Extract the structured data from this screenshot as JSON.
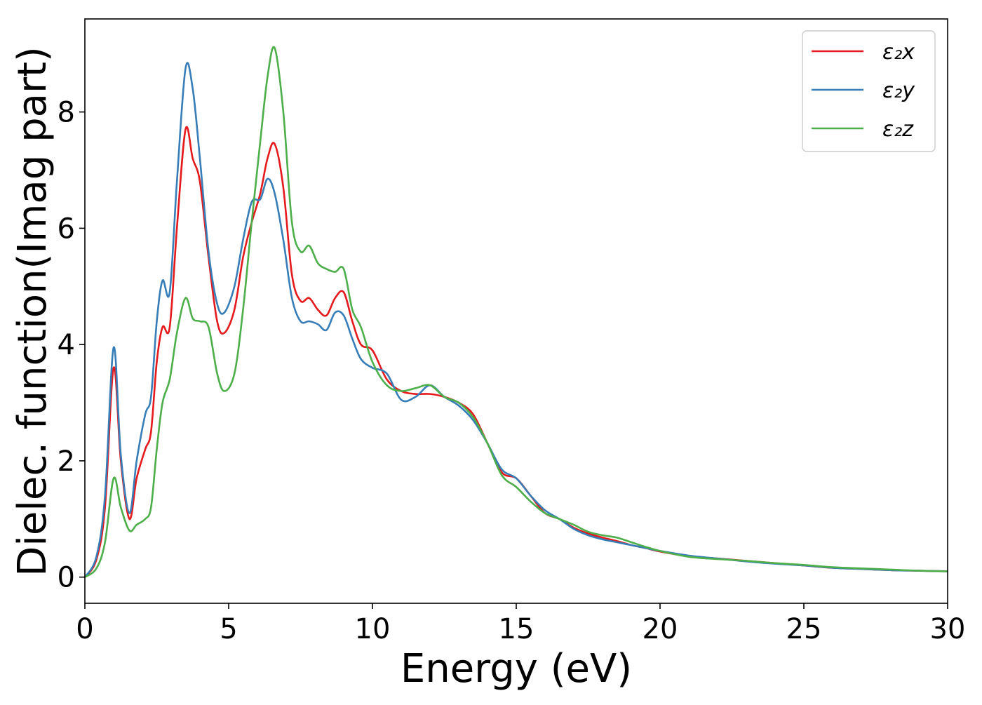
{
  "chart_data": {
    "type": "line",
    "title": "",
    "xlabel": "Energy (eV)",
    "ylabel": "Dielec. function(Imag part)",
    "xlim": [
      0,
      30
    ],
    "ylim": [
      -0.45,
      9.6
    ],
    "xticks": [
      0,
      5,
      10,
      15,
      20,
      25,
      30
    ],
    "yticks": [
      0,
      2,
      4,
      6,
      8
    ],
    "xtick_labels": [
      "0",
      "5",
      "10",
      "15",
      "20",
      "25",
      "30"
    ],
    "ytick_labels": [
      "0",
      "2",
      "4",
      "6",
      "8"
    ],
    "grid": false,
    "legend_position": "top-right",
    "x": [
      0,
      0.4,
      0.7,
      1.0,
      1.25,
      1.55,
      1.8,
      2.1,
      2.3,
      2.5,
      2.7,
      2.95,
      3.2,
      3.5,
      3.75,
      4.0,
      4.3,
      4.6,
      4.85,
      5.2,
      5.5,
      5.8,
      6.1,
      6.35,
      6.6,
      6.9,
      7.2,
      7.5,
      7.8,
      8.1,
      8.4,
      8.7,
      9.0,
      9.3,
      9.6,
      10.0,
      10.5,
      11.0,
      11.5,
      12.0,
      12.5,
      13.0,
      13.5,
      14.0,
      14.5,
      15.0,
      15.5,
      16.0,
      16.5,
      17.0,
      17.5,
      18.0,
      18.5,
      19.0,
      19.5,
      20.0,
      21.0,
      22.0,
      23.0,
      24.0,
      25.0,
      26.0,
      27.0,
      28.0,
      29.0,
      30.0
    ],
    "series": [
      {
        "name": "ε₂x",
        "color": "#e41a1c",
        "values": [
          0.0,
          0.3,
          1.2,
          3.6,
          2.0,
          1.0,
          1.7,
          2.2,
          2.5,
          3.7,
          4.3,
          4.3,
          6.0,
          7.7,
          7.2,
          6.8,
          5.5,
          4.4,
          4.2,
          4.6,
          5.5,
          6.1,
          6.6,
          7.2,
          7.45,
          6.7,
          5.2,
          4.75,
          4.8,
          4.6,
          4.5,
          4.8,
          4.9,
          4.4,
          4.0,
          3.9,
          3.4,
          3.2,
          3.15,
          3.15,
          3.1,
          3.0,
          2.8,
          2.3,
          1.8,
          1.7,
          1.4,
          1.1,
          1.0,
          0.85,
          0.75,
          0.68,
          0.62,
          0.55,
          0.5,
          0.44,
          0.36,
          0.32,
          0.28,
          0.24,
          0.2,
          0.16,
          0.14,
          0.12,
          0.11,
          0.1
        ]
      },
      {
        "name": "ε₂y",
        "color": "#377eb8",
        "values": [
          0.0,
          0.35,
          1.4,
          3.95,
          2.1,
          1.1,
          2.0,
          2.8,
          3.1,
          4.4,
          5.1,
          4.9,
          6.8,
          8.75,
          8.4,
          7.2,
          5.6,
          4.7,
          4.55,
          5.0,
          5.8,
          6.45,
          6.5,
          6.85,
          6.6,
          5.8,
          4.8,
          4.4,
          4.4,
          4.35,
          4.25,
          4.55,
          4.5,
          4.1,
          3.75,
          3.6,
          3.5,
          3.05,
          3.1,
          3.3,
          3.1,
          2.95,
          2.7,
          2.3,
          1.85,
          1.7,
          1.4,
          1.15,
          1.0,
          0.83,
          0.72,
          0.65,
          0.6,
          0.55,
          0.5,
          0.45,
          0.37,
          0.32,
          0.27,
          0.23,
          0.2,
          0.16,
          0.14,
          0.12,
          0.11,
          0.1
        ]
      },
      {
        "name": "ε₂z",
        "color": "#4daf4a",
        "values": [
          0.0,
          0.15,
          0.6,
          1.7,
          1.2,
          0.8,
          0.9,
          1.0,
          1.2,
          2.2,
          3.0,
          3.4,
          4.2,
          4.8,
          4.45,
          4.4,
          4.3,
          3.5,
          3.2,
          3.5,
          4.6,
          6.1,
          7.5,
          8.6,
          9.1,
          8.0,
          6.1,
          5.6,
          5.7,
          5.4,
          5.3,
          5.25,
          5.3,
          4.6,
          4.3,
          3.7,
          3.3,
          3.2,
          3.25,
          3.3,
          3.1,
          3.0,
          2.75,
          2.3,
          1.75,
          1.55,
          1.3,
          1.1,
          1.0,
          0.9,
          0.78,
          0.72,
          0.68,
          0.6,
          0.52,
          0.45,
          0.35,
          0.31,
          0.28,
          0.24,
          0.21,
          0.17,
          0.15,
          0.13,
          0.11,
          0.1
        ]
      }
    ]
  }
}
